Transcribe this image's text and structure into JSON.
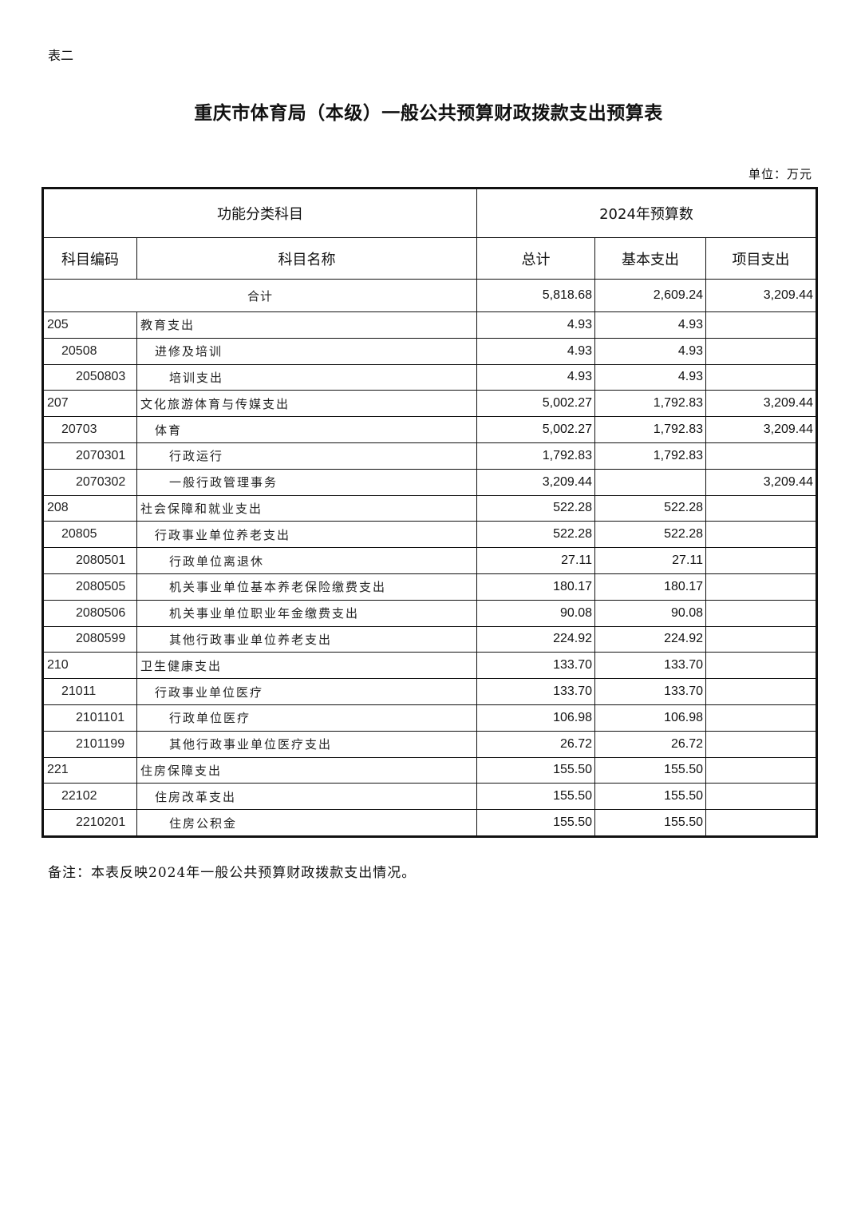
{
  "doc_label": "表二",
  "title": "重庆市体育局（本级）一般公共预算财政拨款支出预算表",
  "unit": "单位：万元",
  "header": {
    "group_left": "功能分类科目",
    "group_right": "2024年预算数",
    "col_code": "科目编码",
    "col_name": "科目名称",
    "col_total": "总计",
    "col_basic": "基本支出",
    "col_project": "项目支出"
  },
  "total_row": {
    "label": "合计",
    "total": "5,818.68",
    "basic": "2,609.24",
    "project": "3,209.44"
  },
  "rows": [
    {
      "level": 0,
      "code": "205",
      "name": "教育支出",
      "total": "4.93",
      "basic": "4.93",
      "project": ""
    },
    {
      "level": 1,
      "code": "20508",
      "name": "进修及培训",
      "total": "4.93",
      "basic": "4.93",
      "project": ""
    },
    {
      "level": 2,
      "code": "2050803",
      "name": "培训支出",
      "total": "4.93",
      "basic": "4.93",
      "project": ""
    },
    {
      "level": 0,
      "code": "207",
      "name": "文化旅游体育与传媒支出",
      "total": "5,002.27",
      "basic": "1,792.83",
      "project": "3,209.44"
    },
    {
      "level": 1,
      "code": "20703",
      "name": "体育",
      "total": "5,002.27",
      "basic": "1,792.83",
      "project": "3,209.44"
    },
    {
      "level": 2,
      "code": "2070301",
      "name": "行政运行",
      "total": "1,792.83",
      "basic": "1,792.83",
      "project": ""
    },
    {
      "level": 2,
      "code": "2070302",
      "name": "一般行政管理事务",
      "total": "3,209.44",
      "basic": "",
      "project": "3,209.44"
    },
    {
      "level": 0,
      "code": "208",
      "name": "社会保障和就业支出",
      "total": "522.28",
      "basic": "522.28",
      "project": ""
    },
    {
      "level": 1,
      "code": "20805",
      "name": "行政事业单位养老支出",
      "total": "522.28",
      "basic": "522.28",
      "project": ""
    },
    {
      "level": 2,
      "code": "2080501",
      "name": "行政单位离退休",
      "total": "27.11",
      "basic": "27.11",
      "project": ""
    },
    {
      "level": 2,
      "code": "2080505",
      "name": "机关事业单位基本养老保险缴费支出",
      "total": "180.17",
      "basic": "180.17",
      "project": ""
    },
    {
      "level": 2,
      "code": "2080506",
      "name": "机关事业单位职业年金缴费支出",
      "total": "90.08",
      "basic": "90.08",
      "project": ""
    },
    {
      "level": 2,
      "code": "2080599",
      "name": "其他行政事业单位养老支出",
      "total": "224.92",
      "basic": "224.92",
      "project": ""
    },
    {
      "level": 0,
      "code": "210",
      "name": "卫生健康支出",
      "total": "133.70",
      "basic": "133.70",
      "project": ""
    },
    {
      "level": 1,
      "code": "21011",
      "name": "行政事业单位医疗",
      "total": "133.70",
      "basic": "133.70",
      "project": ""
    },
    {
      "level": 2,
      "code": "2101101",
      "name": "行政单位医疗",
      "total": "106.98",
      "basic": "106.98",
      "project": ""
    },
    {
      "level": 2,
      "code": "2101199",
      "name": "其他行政事业单位医疗支出",
      "total": "26.72",
      "basic": "26.72",
      "project": ""
    },
    {
      "level": 0,
      "code": "221",
      "name": "住房保障支出",
      "total": "155.50",
      "basic": "155.50",
      "project": ""
    },
    {
      "level": 1,
      "code": "22102",
      "name": "住房改革支出",
      "total": "155.50",
      "basic": "155.50",
      "project": ""
    },
    {
      "level": 2,
      "code": "2210201",
      "name": "住房公积金",
      "total": "155.50",
      "basic": "155.50",
      "project": ""
    }
  ],
  "note": "备注：本表反映2024年一般公共预算财政拨款支出情况。"
}
